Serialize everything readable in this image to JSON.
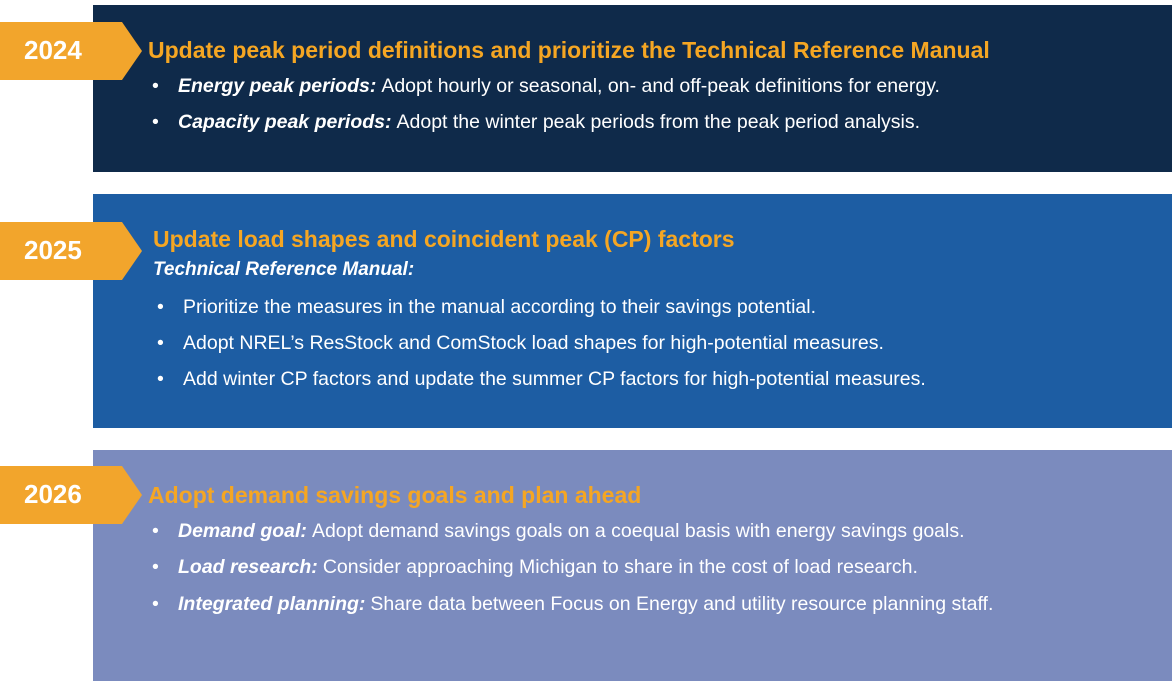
{
  "panels": [
    {
      "year": "2024",
      "title": "Update peak period definitions and prioritize the Technical Reference Manual",
      "items": [
        {
          "lead": "Energy peak periods:",
          "text": "Adopt hourly or seasonal, on- and off-peak definitions for energy."
        },
        {
          "lead": "Capacity peak periods:",
          "text": "Adopt the winter peak periods from the peak period analysis."
        }
      ]
    },
    {
      "year": "2025",
      "title": "Update load shapes and coincident peak (CP) factors",
      "subtitle": "Technical Reference Manual:",
      "items": [
        {
          "text": "Prioritize the measures in the manual according to their savings potential."
        },
        {
          "text": "Adopt NREL’s ResStock and ComStock load shapes for high-potential measures."
        },
        {
          "text": "Add winter CP factors and update the summer CP factors for high-potential measures."
        }
      ]
    },
    {
      "year": "2026",
      "title": "Adopt demand savings goals and plan ahead",
      "items": [
        {
          "lead": "Demand goal:",
          "text": "Adopt demand savings goals on a coequal basis with energy savings goals."
        },
        {
          "lead": "Load research:",
          "text": "Consider approaching Michigan to share in the cost of load research."
        },
        {
          "lead": "Integrated planning:",
          "text": "Share data between Focus on Energy and utility resource planning staff."
        }
      ]
    }
  ]
}
